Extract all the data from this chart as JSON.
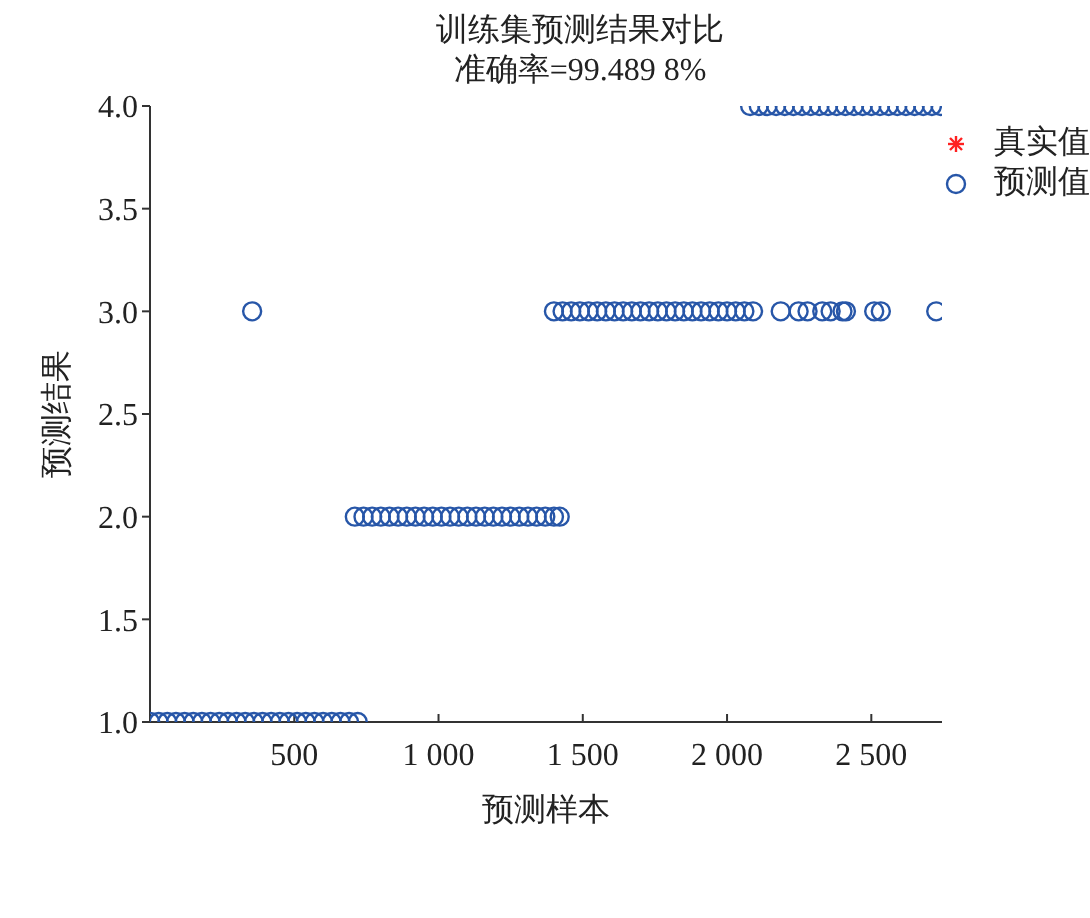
{
  "chart_data": {
    "type": "scatter",
    "title": "训练集预测结果对比",
    "subtitle": "准确率=99.489 8%",
    "xlabel": "预测样本",
    "ylabel": "预测结果",
    "xlim": [
      0,
      2745
    ],
    "xticks": [
      500,
      {
        "value": 1000,
        "label": "1 000"
      },
      {
        "value": 1500,
        "label": "1 500"
      },
      {
        "value": 2000,
        "label": "2 000"
      },
      {
        "value": 2500,
        "label": "2 500"
      }
    ],
    "ylim": [
      1,
      4
    ],
    "yticks": [
      {
        "value": 1,
        "label": "1.0"
      },
      {
        "value": 1.5,
        "label": "1.5"
      },
      {
        "value": 2,
        "label": "2.0"
      },
      {
        "value": 2.5,
        "label": "2.5"
      },
      {
        "value": 3,
        "label": "3.0"
      },
      {
        "value": 3.5,
        "label": "3.5"
      },
      {
        "value": 4,
        "label": "4.0"
      }
    ],
    "grid": false,
    "legend": "top right",
    "series": [
      {
        "name": "真实值",
        "color": "#ff2020",
        "marker": "star"
      },
      {
        "name": "预测值",
        "color": "#2756a8",
        "marker": "circle",
        "x": [
          1,
          30,
          60,
          90,
          120,
          150,
          180,
          210,
          240,
          270,
          300,
          330,
          354,
          360,
          390,
          420,
          450,
          480,
          510,
          540,
          570,
          600,
          630,
          660,
          690,
          720,
          710,
          740,
          770,
          800,
          830,
          860,
          890,
          920,
          950,
          980,
          1010,
          1040,
          1070,
          1100,
          1130,
          1160,
          1190,
          1220,
          1250,
          1280,
          1310,
          1340,
          1370,
          1400,
          1420,
          1400,
          1430,
          1460,
          1490,
          1520,
          1550,
          1580,
          1610,
          1640,
          1670,
          1700,
          1730,
          1760,
          1790,
          1820,
          1850,
          1880,
          1910,
          1940,
          1970,
          2000,
          2030,
          2060,
          2090,
          2186,
          2248,
          2279,
          2330,
          2359,
          2400,
          2412,
          2510,
          2533,
          2725,
          2080,
          2110,
          2140,
          2170,
          2200,
          2230,
          2260,
          2290,
          2320,
          2350,
          2380,
          2410,
          2440,
          2470,
          2500,
          2530,
          2560,
          2590,
          2620,
          2650,
          2680,
          2710,
          2740
        ],
        "values": [
          1,
          1,
          1,
          1,
          1,
          1,
          1,
          1,
          1,
          1,
          1,
          1,
          3,
          1,
          1,
          1,
          1,
          1,
          1,
          1,
          1,
          1,
          1,
          1,
          1,
          1,
          2,
          2,
          2,
          2,
          2,
          2,
          2,
          2,
          2,
          2,
          2,
          2,
          2,
          2,
          2,
          2,
          2,
          2,
          2,
          2,
          2,
          2,
          2,
          2,
          2,
          3,
          3,
          3,
          3,
          3,
          3,
          3,
          3,
          3,
          3,
          3,
          3,
          3,
          3,
          3,
          3,
          3,
          3,
          3,
          3,
          3,
          3,
          3,
          3,
          3,
          3,
          3,
          3,
          3,
          3,
          3,
          3,
          3,
          3,
          4,
          4,
          4,
          4,
          4,
          4,
          4,
          4,
          4,
          4,
          4,
          4,
          4,
          4,
          4,
          4,
          4,
          4,
          4,
          4,
          4,
          4,
          4
        ]
      }
    ]
  }
}
